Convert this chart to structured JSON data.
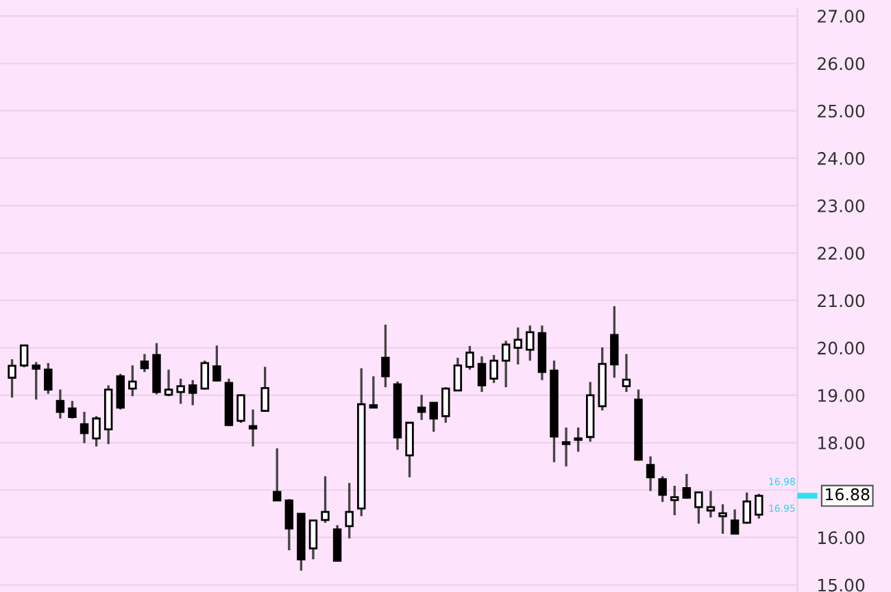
{
  "chart_data": {
    "type": "candlestick",
    "categories": [
      null,
      null,
      null,
      null,
      null,
      null,
      null,
      null,
      null,
      null,
      null,
      null,
      null,
      null,
      null,
      null,
      null,
      null,
      null,
      null,
      null,
      null,
      null,
      null,
      null,
      null,
      null,
      null,
      null,
      null,
      null,
      null,
      null,
      null,
      null,
      null,
      null,
      null,
      null,
      null,
      null,
      null,
      null,
      null,
      null,
      null,
      null,
      null,
      null,
      null,
      null,
      null,
      null,
      null,
      null,
      null,
      null,
      null,
      null,
      null,
      null,
      null,
      null
    ],
    "ohlc": [
      [
        19.37,
        19.76,
        18.95,
        19.62
      ],
      [
        19.63,
        20.05,
        19.59,
        20.05
      ],
      [
        19.63,
        19.7,
        18.91,
        19.56
      ],
      [
        19.54,
        19.68,
        19.03,
        19.12
      ],
      [
        18.88,
        19.12,
        18.51,
        18.65
      ],
      [
        18.72,
        18.88,
        18.51,
        18.54
      ],
      [
        18.39,
        18.65,
        17.99,
        18.2
      ],
      [
        18.09,
        18.56,
        17.92,
        18.51
      ],
      [
        18.28,
        19.21,
        17.97,
        19.12
      ],
      [
        19.4,
        19.45,
        18.7,
        18.74
      ],
      [
        19.14,
        19.63,
        18.98,
        19.29
      ],
      [
        19.71,
        19.87,
        19.49,
        19.57
      ],
      [
        19.85,
        20.1,
        19.02,
        19.07
      ],
      [
        19.01,
        19.54,
        18.98,
        19.12
      ],
      [
        19.07,
        19.35,
        18.82,
        19.19
      ],
      [
        19.21,
        19.32,
        18.79,
        19.05
      ],
      [
        19.14,
        19.73,
        19.12,
        19.68
      ],
      [
        19.61,
        20.05,
        19.29,
        19.31
      ],
      [
        19.26,
        19.35,
        18.35,
        18.37
      ],
      [
        18.46,
        19.02,
        18.42,
        19.0
      ],
      [
        18.35,
        18.7,
        17.92,
        18.3
      ],
      [
        18.67,
        19.6,
        18.65,
        19.15
      ],
      [
        16.96,
        17.88,
        16.78,
        16.78
      ],
      [
        16.78,
        16.81,
        15.73,
        16.19
      ],
      [
        16.5,
        16.51,
        15.3,
        15.54
      ],
      [
        15.77,
        16.37,
        15.54,
        16.36
      ],
      [
        16.37,
        17.29,
        16.31,
        16.54
      ],
      [
        16.17,
        16.26,
        15.51,
        15.51
      ],
      [
        16.24,
        17.15,
        15.98,
        16.54
      ],
      [
        16.61,
        19.57,
        16.45,
        18.81
      ],
      [
        18.79,
        19.4,
        18.74,
        18.74
      ],
      [
        19.79,
        20.49,
        19.17,
        19.4
      ],
      [
        19.23,
        19.29,
        17.85,
        18.11
      ],
      [
        17.73,
        18.42,
        17.27,
        18.42
      ],
      [
        18.74,
        19.01,
        18.48,
        18.65
      ],
      [
        18.84,
        18.84,
        18.23,
        18.51
      ],
      [
        18.56,
        19.17,
        18.42,
        19.14
      ],
      [
        19.1,
        19.79,
        19.1,
        19.63
      ],
      [
        19.6,
        20.04,
        19.54,
        19.9
      ],
      [
        19.66,
        19.82,
        19.07,
        19.21
      ],
      [
        19.35,
        19.85,
        19.26,
        19.73
      ],
      [
        19.73,
        20.15,
        19.17,
        20.07
      ],
      [
        20.0,
        20.43,
        19.65,
        20.17
      ],
      [
        19.96,
        20.47,
        19.73,
        20.33
      ],
      [
        20.31,
        20.47,
        19.32,
        19.49
      ],
      [
        19.52,
        19.73,
        17.59,
        18.13
      ],
      [
        18.01,
        18.32,
        17.5,
        17.97
      ],
      [
        18.06,
        18.32,
        17.81,
        18.09
      ],
      [
        18.12,
        19.28,
        18.02,
        19.0
      ],
      [
        18.77,
        20.01,
        18.68,
        19.66
      ],
      [
        20.27,
        20.88,
        19.37,
        19.65
      ],
      [
        19.19,
        19.87,
        19.07,
        19.33
      ],
      [
        18.91,
        19.12,
        17.62,
        17.64
      ],
      [
        17.53,
        17.71,
        16.98,
        17.27
      ],
      [
        17.23,
        17.29,
        16.75,
        16.9
      ],
      [
        16.79,
        17.09,
        16.47,
        16.85
      ],
      [
        17.04,
        17.34,
        16.82,
        16.84
      ],
      [
        16.64,
        16.96,
        16.29,
        16.95
      ],
      [
        16.57,
        16.98,
        16.42,
        16.64
      ],
      [
        16.45,
        16.7,
        16.08,
        16.51
      ],
      [
        16.36,
        16.59,
        16.08,
        16.08
      ],
      [
        16.31,
        16.95,
        16.29,
        16.76
      ],
      [
        16.48,
        16.92,
        16.4,
        16.88
      ]
    ],
    "ylim": [
      14.85,
      27.15
    ],
    "yticks": [
      {
        "value": 15,
        "label": "15.00"
      },
      {
        "value": 16,
        "label": "16.00"
      },
      {
        "value": 17,
        "label": null
      },
      {
        "value": 18,
        "label": "18.00"
      },
      {
        "value": 19,
        "label": "19.00"
      },
      {
        "value": 20,
        "label": "20.00"
      },
      {
        "value": 21,
        "label": "21.00"
      },
      {
        "value": 22,
        "label": "22.00"
      },
      {
        "value": 23,
        "label": "23.00"
      },
      {
        "value": 24,
        "label": "24.00"
      },
      {
        "value": 25,
        "label": "25.00"
      },
      {
        "value": 26,
        "label": "26.00"
      },
      {
        "value": 27,
        "label": "27.00"
      }
    ],
    "grid": "y",
    "tick_labels": "y",
    "ref_lines": [
      {
        "axis": "y",
        "value": 16.88,
        "label": "16.88",
        "color": "#2ee0f0"
      }
    ],
    "annotations": [
      "16.98",
      "16.95"
    ]
  }
}
